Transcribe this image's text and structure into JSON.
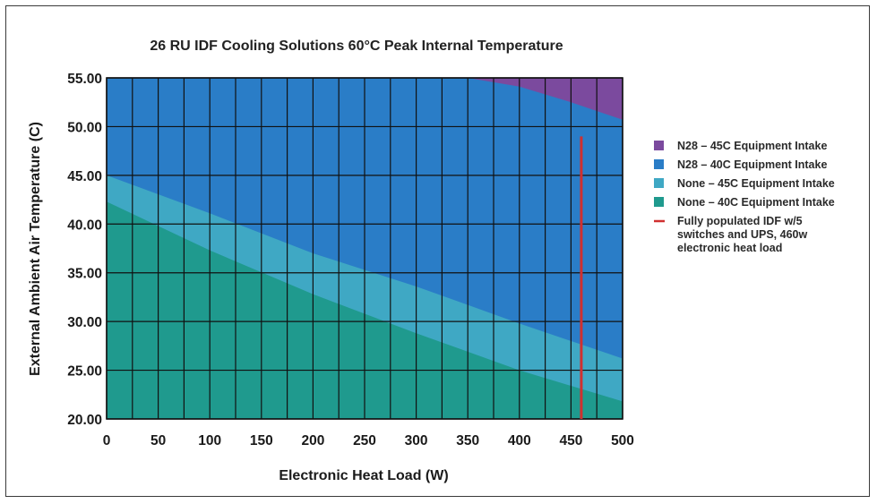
{
  "chart_data": {
    "type": "area",
    "title": "26 RU IDF Cooling Solutions  60°C Peak Internal Temperature",
    "xlabel": "Electronic Heat Load (W)",
    "ylabel": "External Ambient Air Temperature (C)",
    "xlim": [
      0,
      500
    ],
    "ylim": [
      20,
      55
    ],
    "x_ticks": [
      "0",
      "50",
      "100",
      "150",
      "200",
      "250",
      "300",
      "350",
      "400",
      "450",
      "500"
    ],
    "y_ticks": [
      "20.00",
      "25.00",
      "30.00",
      "35.00",
      "40.00",
      "45.00",
      "50.00",
      "55.00"
    ],
    "grid": true,
    "grid_x_step": 25,
    "grid_y_step": 5,
    "legend_position": "right",
    "colors": {
      "N28_45C": "#7b4a9e",
      "N28_40C": "#2a7dc7",
      "None_45C": "#3fa8c4",
      "None_40C": "#1f9a8e",
      "line": "#d03030",
      "grid": "#111111"
    },
    "series": [
      {
        "name": "None – 40C Equipment Intake",
        "key": "None_40C",
        "boundary": {
          "x": [
            0,
            100,
            200,
            300,
            400,
            500
          ],
          "y": [
            42.3,
            37.3,
            32.8,
            28.8,
            25.0,
            21.8
          ]
        }
      },
      {
        "name": "None – 45C Equipment Intake",
        "key": "None_45C",
        "boundary": {
          "x": [
            0,
            100,
            200,
            300,
            400,
            500
          ],
          "y": [
            45.0,
            41.1,
            37.0,
            33.6,
            29.8,
            26.2
          ]
        }
      },
      {
        "name": "N28 – 40C Equipment Intake",
        "key": "N28_40C",
        "boundary": {
          "x": [
            0,
            350,
            400,
            450,
            500
          ],
          "y": [
            55.0,
            55.0,
            54.1,
            52.5,
            50.7
          ]
        }
      },
      {
        "name": "N28 – 45C Equipment Intake",
        "key": "N28_45C",
        "boundary": {
          "x": [
            0,
            500
          ],
          "y": [
            55.0,
            55.0
          ]
        }
      }
    ],
    "marker_line": {
      "name": "Fully populated IDF w/5 switches and UPS, 460w electronic heat load",
      "x": 460,
      "y_range": [
        20,
        49
      ]
    },
    "legend": [
      {
        "key": "N28_45C",
        "label": "N28 – 45C Equipment  Intake",
        "kind": "swatch"
      },
      {
        "key": "N28_40C",
        "label": "N28 – 40C Equipment Intake",
        "kind": "swatch"
      },
      {
        "key": "None_45C",
        "label": "None – 45C Equipment Intake",
        "kind": "swatch"
      },
      {
        "key": "None_40C",
        "label": "None – 40C Equipment Intake",
        "kind": "swatch"
      },
      {
        "key": "line",
        "label_lines": [
          "Fully populated IDF w/5",
          "switches and UPS, 460w",
          "electronic heat load"
        ],
        "kind": "line"
      }
    ]
  }
}
